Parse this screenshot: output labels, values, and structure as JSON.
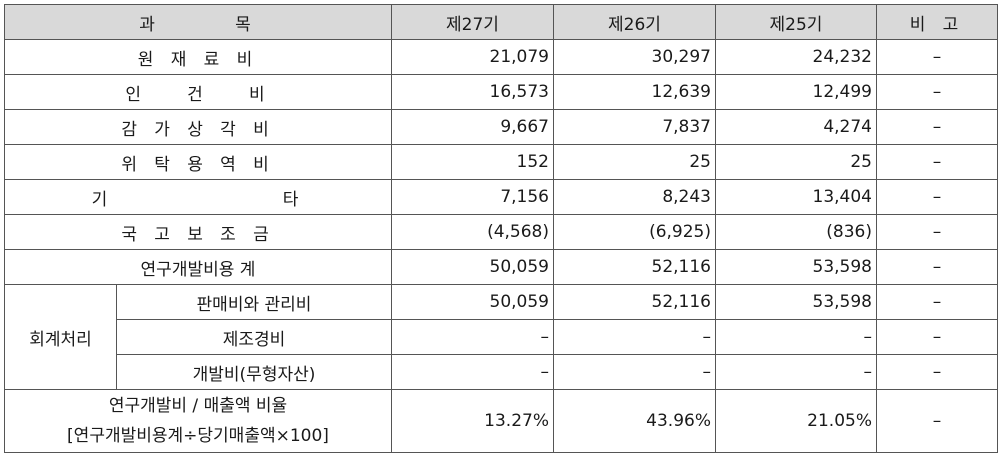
{
  "header": {
    "item": "과 목",
    "col27": "제27기",
    "col26": "제26기",
    "col25": "제25기",
    "remark": "비 고"
  },
  "rows": [
    {
      "label": "원 재 료 비",
      "v27": "21,079",
      "v26": "30,297",
      "v25": "24,232",
      "remark": "–"
    },
    {
      "label": "인 건 비",
      "v27": "16,573",
      "v26": "12,639",
      "v25": "12,499",
      "remark": "–"
    },
    {
      "label": "감 가 상 각 비",
      "v27": "9,667",
      "v26": "7,837",
      "v25": "4,274",
      "remark": "–"
    },
    {
      "label": "위 탁 용 역 비",
      "v27": "152",
      "v26": "25",
      "v25": "25",
      "remark": "–"
    },
    {
      "label": "기 타",
      "v27": "7,156",
      "v26": "8,243",
      "v25": "13,404",
      "remark": "–"
    },
    {
      "label": "국 고 보 조 금",
      "v27": "(4,568)",
      "v26": "(6,925)",
      "v25": "(836)",
      "remark": "–"
    },
    {
      "label": "연구개발비용 계",
      "v27": "50,059",
      "v26": "52,116",
      "v25": "53,598",
      "remark": "–"
    }
  ],
  "accounting": {
    "group_label": "회계처리",
    "rows": [
      {
        "label": "판매비와 관리비",
        "v27": "50,059",
        "v26": "52,116",
        "v25": "53,598",
        "remark": "–"
      },
      {
        "label": "제조경비",
        "v27": "–",
        "v26": "–",
        "v25": "–",
        "remark": "–"
      },
      {
        "label": "개발비(무형자산)",
        "v27": "–",
        "v26": "–",
        "v25": "–",
        "remark": "–"
      }
    ]
  },
  "ratio": {
    "label_line1": "연구개발비 / 매출액 비율",
    "label_line2": "[연구개발비용계÷당기매출액×100]",
    "v27": "13.27%",
    "v26": "43.96%",
    "v25": "21.05%",
    "remark": "–"
  }
}
